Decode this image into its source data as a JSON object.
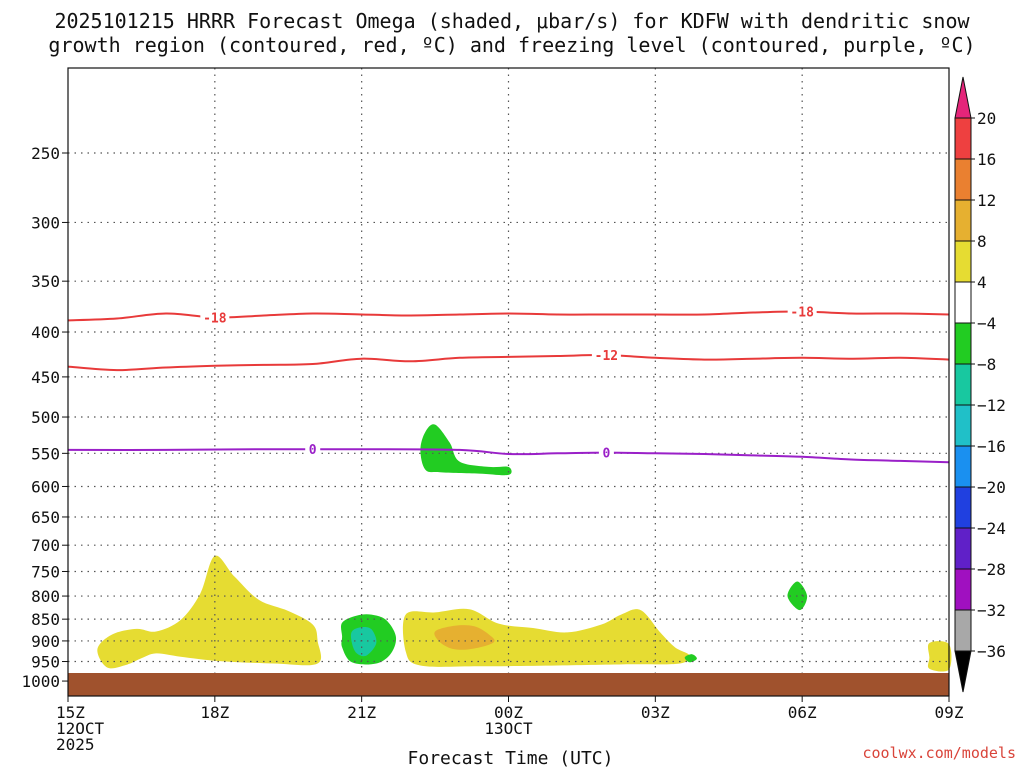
{
  "title_line1": "2025101215 HRRR Forecast Omega (shaded, μbar/s) for KDFW with dendritic snow",
  "title_line2": "growth region (contoured, red, ºC) and freezing level (contoured, purple, ºC)",
  "credit": "coolwx.com/models",
  "chart_data": {
    "type": "area",
    "title": "2025101215 HRRR Forecast Omega (shaded, μbar/s) for KDFW with dendritic snow growth region (contoured, red, ºC) and freezing level (contoured, purple, ºC)",
    "xlabel": "Forecast Time (UTC)",
    "ylabel": "",
    "grid": true,
    "xlim_hours": [
      0,
      18
    ],
    "ylim_hpa": [
      200,
      1040
    ],
    "y_scale": "log",
    "x_ticks": [
      {
        "hour": 0,
        "lines": [
          "15Z",
          "12OCT",
          "2025"
        ]
      },
      {
        "hour": 3,
        "lines": [
          "18Z"
        ]
      },
      {
        "hour": 6,
        "lines": [
          "21Z"
        ]
      },
      {
        "hour": 9,
        "lines": [
          "00Z",
          "13OCT"
        ]
      },
      {
        "hour": 12,
        "lines": [
          "03Z"
        ]
      },
      {
        "hour": 15,
        "lines": [
          "06Z"
        ]
      },
      {
        "hour": 18,
        "lines": [
          "09Z"
        ]
      }
    ],
    "y_ticks": [
      250,
      300,
      350,
      400,
      450,
      500,
      550,
      600,
      650,
      700,
      750,
      800,
      850,
      900,
      950,
      1000
    ],
    "contours": [
      {
        "label": "-18",
        "color": "#e83a3a",
        "points": [
          [
            0,
            388
          ],
          [
            1,
            386
          ],
          [
            2,
            381
          ],
          [
            3,
            385
          ],
          [
            4,
            383
          ],
          [
            5,
            381
          ],
          [
            6,
            382
          ],
          [
            7,
            383
          ],
          [
            8,
            382
          ],
          [
            9,
            381
          ],
          [
            10,
            382
          ],
          [
            11,
            382
          ],
          [
            12,
            382
          ],
          [
            13,
            382
          ],
          [
            14,
            380
          ],
          [
            15,
            379
          ],
          [
            16,
            381
          ],
          [
            17,
            381
          ],
          [
            18,
            382
          ]
        ],
        "label_at": [
          [
            3,
            385
          ],
          [
            15,
            379
          ]
        ]
      },
      {
        "label": "-12",
        "color": "#e83a3a",
        "points": [
          [
            0,
            438
          ],
          [
            1,
            442
          ],
          [
            2,
            439
          ],
          [
            3,
            437
          ],
          [
            4,
            436
          ],
          [
            5,
            435
          ],
          [
            6,
            429
          ],
          [
            7,
            432
          ],
          [
            8,
            428
          ],
          [
            9,
            427
          ],
          [
            10,
            426
          ],
          [
            11,
            425
          ],
          [
            12,
            428
          ],
          [
            13,
            430
          ],
          [
            14,
            429
          ],
          [
            15,
            428
          ],
          [
            16,
            429
          ],
          [
            17,
            428
          ],
          [
            18,
            430
          ]
        ],
        "label_at": [
          [
            11,
            425
          ]
        ]
      },
      {
        "label": "0",
        "color": "#9a20c8",
        "points": [
          [
            0,
            545
          ],
          [
            2,
            545
          ],
          [
            4,
            544
          ],
          [
            6,
            544
          ],
          [
            8,
            545
          ],
          [
            9,
            551
          ],
          [
            10,
            550
          ],
          [
            11,
            549
          ],
          [
            12,
            550
          ],
          [
            13,
            551
          ],
          [
            14,
            553
          ],
          [
            15,
            555
          ],
          [
            16,
            559
          ],
          [
            17,
            561
          ],
          [
            18,
            563
          ]
        ],
        "label_at": [
          [
            5,
            544
          ],
          [
            11,
            549
          ]
        ]
      }
    ],
    "omega_regions": [
      {
        "value_range": [
          4,
          8
        ],
        "color": "#e6dc32",
        "points": [
          [
            0.6,
            920
          ],
          [
            0.9,
            885
          ],
          [
            1.4,
            872
          ],
          [
            1.8,
            878
          ],
          [
            2.3,
            852
          ],
          [
            2.7,
            795
          ],
          [
            3.0,
            720
          ],
          [
            3.4,
            760
          ],
          [
            3.9,
            808
          ],
          [
            4.5,
            832
          ],
          [
            5.0,
            862
          ],
          [
            5.1,
            900
          ],
          [
            5.1,
            955
          ],
          [
            4.2,
            955
          ],
          [
            3.1,
            949
          ],
          [
            2.3,
            938
          ],
          [
            1.8,
            930
          ],
          [
            1.5,
            942
          ],
          [
            1.2,
            958
          ],
          [
            0.8,
            965
          ]
        ]
      },
      {
        "value_range": [
          4,
          8
        ],
        "color": "#e6dc32",
        "points": [
          [
            6.9,
            840
          ],
          [
            7.5,
            835
          ],
          [
            8.2,
            828
          ],
          [
            8.8,
            860
          ],
          [
            9.5,
            870
          ],
          [
            10.2,
            880
          ],
          [
            10.9,
            862
          ],
          [
            11.3,
            840
          ],
          [
            11.7,
            830
          ],
          [
            12.1,
            880
          ],
          [
            12.4,
            915
          ],
          [
            12.7,
            935
          ],
          [
            12.5,
            955
          ],
          [
            11.5,
            957
          ],
          [
            10.0,
            960
          ],
          [
            8.4,
            962
          ],
          [
            7.2,
            960
          ],
          [
            6.9,
            925
          ]
        ]
      },
      {
        "value_range": [
          4,
          8
        ],
        "color": "#e6dc32",
        "points": [
          [
            17.6,
            905
          ],
          [
            18,
            908
          ],
          [
            18,
            970
          ],
          [
            17.6,
            968
          ],
          [
            17.6,
            940
          ]
        ]
      },
      {
        "value_range": [
          8,
          12
        ],
        "color": "#e6b030",
        "points": [
          [
            7.5,
            878
          ],
          [
            7.9,
            865
          ],
          [
            8.3,
            866
          ],
          [
            8.6,
            885
          ],
          [
            8.7,
            903
          ],
          [
            8.3,
            918
          ],
          [
            7.9,
            920
          ],
          [
            7.6,
            903
          ]
        ]
      },
      {
        "value_range": [
          -8,
          -4
        ],
        "color": "#22cc22",
        "points": [
          [
            5.6,
            858
          ],
          [
            5.9,
            842
          ],
          [
            6.2,
            840
          ],
          [
            6.5,
            852
          ],
          [
            6.7,
            890
          ],
          [
            6.6,
            930
          ],
          [
            6.3,
            955
          ],
          [
            5.8,
            952
          ],
          [
            5.6,
            915
          ],
          [
            5.6,
            890
          ]
        ]
      },
      {
        "value_range": [
          -12,
          -8
        ],
        "color": "#18c8a0",
        "points": [
          [
            5.8,
            878
          ],
          [
            6.0,
            868
          ],
          [
            6.2,
            873
          ],
          [
            6.3,
            905
          ],
          [
            6.1,
            935
          ],
          [
            5.9,
            930
          ],
          [
            5.8,
            905
          ]
        ]
      },
      {
        "value_range": [
          -8,
          -4
        ],
        "color": "#22cc22",
        "points": [
          [
            7.3,
            520
          ],
          [
            7.5,
            510
          ],
          [
            7.8,
            535
          ],
          [
            8.0,
            562
          ],
          [
            8.6,
            570
          ],
          [
            9.0,
            570
          ],
          [
            9.0,
            582
          ],
          [
            8.4,
            580
          ],
          [
            7.6,
            578
          ],
          [
            7.3,
            574
          ],
          [
            7.2,
            545
          ]
        ]
      },
      {
        "value_range": [
          -8,
          -4
        ],
        "color": "#22cc22",
        "points": [
          [
            14.7,
            800
          ],
          [
            14.9,
            770
          ],
          [
            15.1,
            800
          ],
          [
            14.95,
            830
          ]
        ]
      },
      {
        "value_range": [
          -8,
          -4
        ],
        "color": "#22cc22",
        "points": [
          [
            12.6,
            940
          ],
          [
            12.75,
            932
          ],
          [
            12.85,
            943
          ],
          [
            12.7,
            952
          ]
        ]
      }
    ],
    "ground_color": "#a0522d",
    "colorbar": {
      "bins": [
        {
          "range": [
            20,
            null
          ],
          "color": "#e5257a"
        },
        {
          "range": [
            16,
            20
          ],
          "color": "#ee4040"
        },
        {
          "range": [
            12,
            16
          ],
          "color": "#ea8030"
        },
        {
          "range": [
            8,
            12
          ],
          "color": "#e6b030"
        },
        {
          "range": [
            4,
            8
          ],
          "color": "#e6dc32"
        },
        {
          "range": [
            -4,
            4
          ],
          "color": "#ffffff"
        },
        {
          "range": [
            -8,
            -4
          ],
          "color": "#22cc22"
        },
        {
          "range": [
            -12,
            -8
          ],
          "color": "#18c8a0"
        },
        {
          "range": [
            -16,
            -12
          ],
          "color": "#20c0c8"
        },
        {
          "range": [
            -20,
            -16
          ],
          "color": "#1a90f0"
        },
        {
          "range": [
            -24,
            -20
          ],
          "color": "#2040e0"
        },
        {
          "range": [
            -28,
            -24
          ],
          "color": "#6020c8"
        },
        {
          "range": [
            -32,
            -28
          ],
          "color": "#a010c0"
        },
        {
          "range": [
            -36,
            -32
          ],
          "color": "#a8a8a8"
        },
        {
          "range": [
            null,
            -36
          ],
          "color": "#000000"
        }
      ],
      "labels": [
        "20",
        "16",
        "12",
        "8",
        "4",
        "−4",
        "−8",
        "−12",
        "−16",
        "−20",
        "−24",
        "−28",
        "−32",
        "−36"
      ]
    }
  }
}
